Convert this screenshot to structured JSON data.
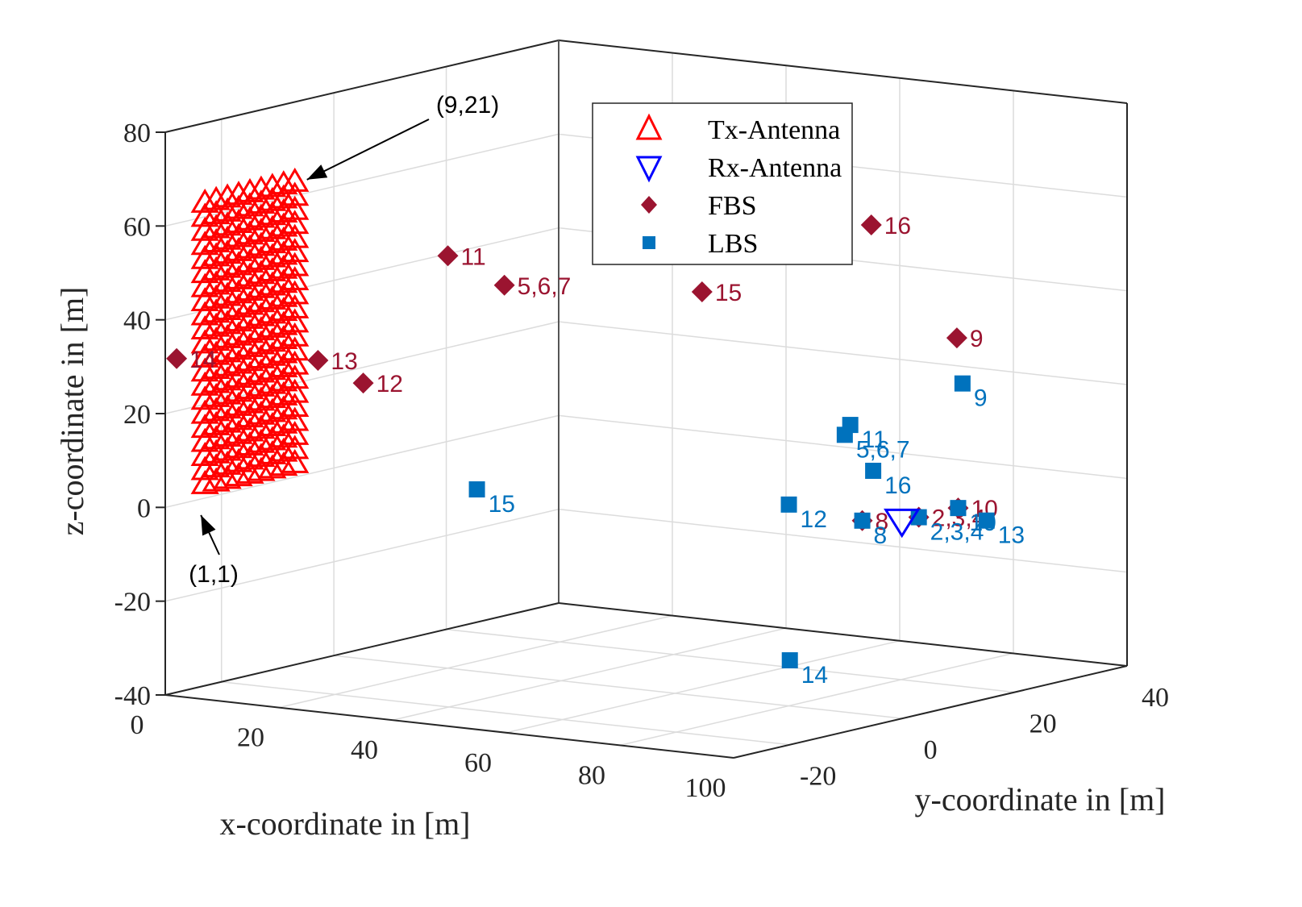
{
  "chart_data": {
    "type": "scatter3d",
    "title": "",
    "xlabel": "x-coordinate in [m]",
    "ylabel": "y-coordinate in [m]",
    "zlabel": "z-coordinate in [m]",
    "xlim": [
      0,
      100
    ],
    "ylim": [
      -30,
      40
    ],
    "zlim": [
      -40,
      80
    ],
    "xticks": [
      0,
      20,
      40,
      60,
      80,
      100
    ],
    "yticks": [
      -20,
      0,
      20,
      40
    ],
    "zticks": [
      -40,
      -20,
      0,
      20,
      40,
      60,
      80
    ],
    "grid": true,
    "legend_position": "top-center",
    "legend": [
      {
        "label": "Tx-Antenna",
        "marker": "triangle-up",
        "color": "#ff0000"
      },
      {
        "label": "Rx-Antenna",
        "marker": "triangle-down",
        "color": "#0000ff"
      },
      {
        "label": "FBS",
        "marker": "diamond",
        "color": "#9b1430"
      },
      {
        "label": "LBS",
        "marker": "square",
        "color": "#0072bd"
      }
    ],
    "tx_array": {
      "rows": 21,
      "cols": 9,
      "x": 5,
      "y_range": [
        -28,
        -12
      ],
      "z_range": [
        5,
        65
      ],
      "annotations": [
        {
          "text": "(1,1)",
          "element": [
            1,
            1
          ]
        },
        {
          "text": "(9,21)",
          "element": [
            9,
            21
          ]
        }
      ]
    },
    "rx": {
      "x": 95,
      "y": 5,
      "z": 0
    },
    "fbs": [
      {
        "label": "2,3,4",
        "x": 95,
        "y": 8,
        "z": 0
      },
      {
        "label": "5,6,7",
        "x": 30,
        "y": 0,
        "z": 43
      },
      {
        "label": "8",
        "x": 90,
        "y": 3,
        "z": 0
      },
      {
        "label": "9",
        "x": 75,
        "y": 35,
        "z": 28
      },
      {
        "label": "10",
        "x": 95,
        "y": 15,
        "z": 0
      },
      {
        "label": "11",
        "x": 25,
        "y": -5,
        "z": 50
      },
      {
        "label": "12",
        "x": 20,
        "y": -15,
        "z": 25
      },
      {
        "label": "13",
        "x": 15,
        "y": -18,
        "z": 30
      },
      {
        "label": "14",
        "x": 2,
        "y": -30,
        "z": 32
      },
      {
        "label": "15",
        "x": 45,
        "y": 20,
        "z": 38
      },
      {
        "label": "16",
        "x": 55,
        "y": 40,
        "z": 48
      }
    ],
    "lbs": [
      {
        "label": "2,3,4",
        "x": 95,
        "y": 8,
        "z": 0
      },
      {
        "label": "5,6,7",
        "x": 80,
        "y": 10,
        "z": 15
      },
      {
        "label": "8",
        "x": 90,
        "y": 3,
        "z": 0
      },
      {
        "label": "9",
        "x": 75,
        "y": 36,
        "z": 18
      },
      {
        "label": "10",
        "x": 95,
        "y": 15,
        "z": 0
      },
      {
        "label": "11",
        "x": 78,
        "y": 13,
        "z": 16
      },
      {
        "label": "12",
        "x": 85,
        "y": -5,
        "z": 5
      },
      {
        "label": "13",
        "x": 100,
        "y": 15,
        "z": -2
      },
      {
        "label": "14",
        "x": 100,
        "y": -20,
        "z": -22
      },
      {
        "label": "15",
        "x": 40,
        "y": -15,
        "z": 5
      },
      {
        "label": "16",
        "x": 85,
        "y": 10,
        "z": 8
      }
    ]
  }
}
